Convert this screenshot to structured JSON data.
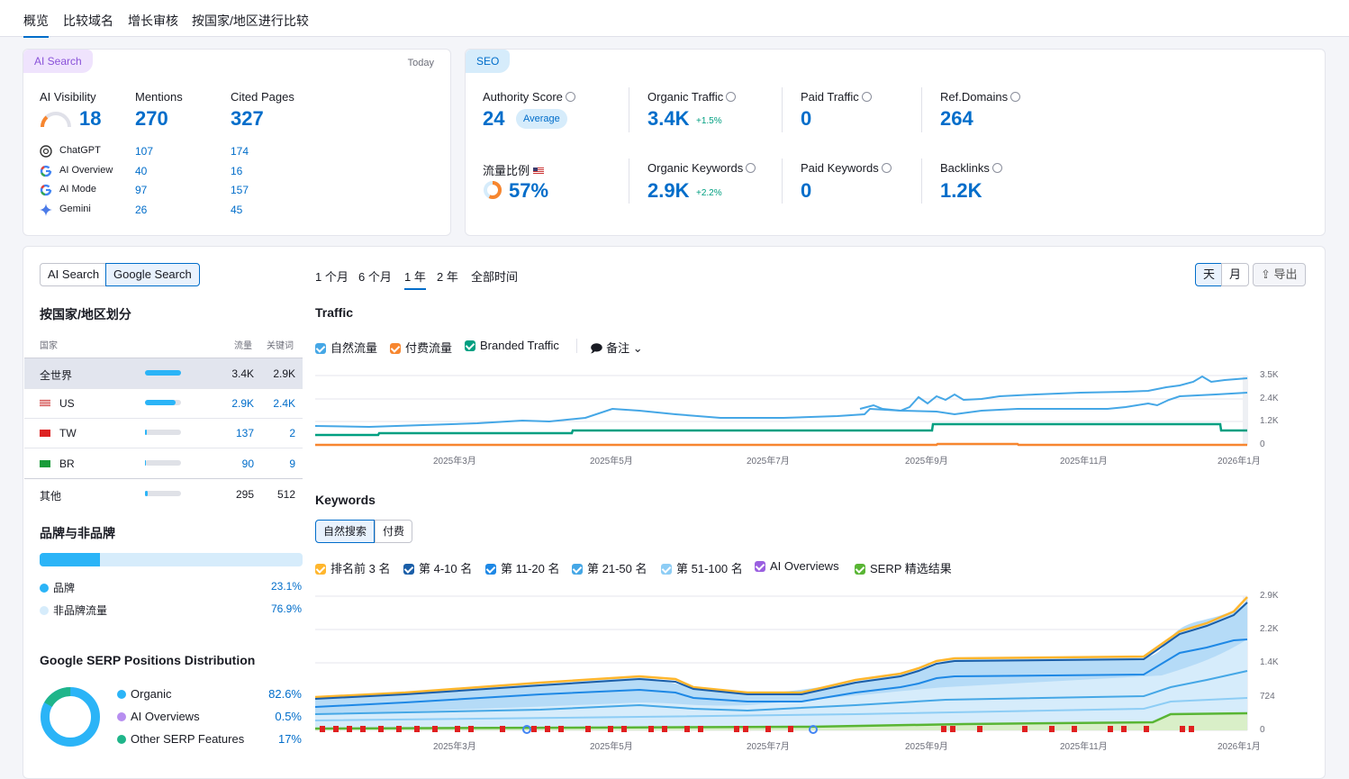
{
  "tabs": [
    "概览",
    "比较域名",
    "增长审核",
    "按国家/地区进行比较"
  ],
  "ai": {
    "badge": "AI Search",
    "date": "Today",
    "visibility_label": "AI Visibility",
    "visibility": "18",
    "mentions_label": "Mentions",
    "mentions": "270",
    "cited_label": "Cited Pages",
    "cited": "327",
    "sources": [
      {
        "name": "ChatGPT",
        "mentions": "107",
        "cited": "174"
      },
      {
        "name": "AI Overview",
        "mentions": "40",
        "cited": "16"
      },
      {
        "name": "AI Mode",
        "mentions": "97",
        "cited": "157"
      },
      {
        "name": "Gemini",
        "mentions": "26",
        "cited": "45"
      }
    ]
  },
  "seo": {
    "badge": "SEO",
    "authority_label": "Authority Score",
    "authority": "24",
    "authority_badge": "Average",
    "organic_traffic_label": "Organic Traffic",
    "organic_traffic": "3.4K",
    "organic_traffic_delta": "+1.5%",
    "paid_traffic_label": "Paid Traffic",
    "paid_traffic": "0",
    "ref_domains_label": "Ref.Domains",
    "ref_domains": "264",
    "share_label": "流量比例",
    "share": "57%",
    "organic_kw_label": "Organic Keywords",
    "organic_kw": "2.9K",
    "organic_kw_delta": "+2.2%",
    "paid_kw_label": "Paid Keywords",
    "paid_kw": "0",
    "backlinks_label": "Backlinks",
    "backlinks": "1.2K"
  },
  "toggle": [
    "AI Search",
    "Google Search"
  ],
  "ranges": [
    "1 个月",
    "6 个月",
    "1 年",
    "2 年",
    "全部时间"
  ],
  "granularity": [
    "天",
    "月"
  ],
  "export_label": "导出",
  "country": {
    "title": "按国家/地区划分",
    "col_country": "国家",
    "col_traffic": "流量",
    "col_kw": "关键词",
    "rows": [
      {
        "name": "全世界",
        "traffic": "3.4K",
        "kw": "2.9K",
        "share": 1.0
      },
      {
        "name": "US",
        "traffic": "2.9K",
        "kw": "2.4K",
        "share": 0.85
      },
      {
        "name": "TW",
        "traffic": "137",
        "kw": "2",
        "share": 0.04
      },
      {
        "name": "BR",
        "traffic": "90",
        "kw": "9",
        "share": 0.03
      },
      {
        "name": "其他",
        "traffic": "295",
        "kw": "512",
        "share": 0.08
      }
    ]
  },
  "brand": {
    "title": "品牌与非品牌",
    "branded_label": "品牌",
    "branded": "23.1%",
    "branded_share": 0.231,
    "nonbranded_label": "非品牌流量",
    "nonbranded": "76.9%"
  },
  "serp": {
    "title": "Google SERP Positions Distribution",
    "items": [
      {
        "label": "Organic",
        "value": "82.6%",
        "color": "#2bb4f7"
      },
      {
        "label": "AI Overviews",
        "value": "0.5%",
        "color": "#b78ef0"
      },
      {
        "label": "Other SERP Features",
        "value": "17%",
        "color": "#1fb58a"
      }
    ]
  },
  "traffic": {
    "title": "Traffic",
    "legend": [
      "自然流量",
      "付费流量",
      "Branded Traffic"
    ],
    "notes": "备注",
    "yticks": [
      "3.5K",
      "2.4K",
      "1.2K",
      "0"
    ],
    "xticks": [
      "2025年3月",
      "2025年5月",
      "2025年7月",
      "2025年9月",
      "2025年11月",
      "2026年1月"
    ]
  },
  "keywords": {
    "title": "Keywords",
    "tabs": [
      "自然搜索",
      "付费"
    ],
    "legend": [
      "排名前 3 名",
      "第 4-10 名",
      "第 11-20 名",
      "第 21-50 名",
      "第 51-100 名",
      "AI Overviews",
      "SERP 精选结果"
    ],
    "yticks": [
      "2.9K",
      "2.2K",
      "1.4K",
      "724",
      "0"
    ],
    "xticks": [
      "2025年3月",
      "2025年5月",
      "2025年7月",
      "2025年9月",
      "2025年11月",
      "2026年1月"
    ]
  },
  "colors": {
    "accent": "#006dca",
    "organic": "#45a7e6",
    "paid": "#f7862f",
    "branded": "#009f81"
  }
}
